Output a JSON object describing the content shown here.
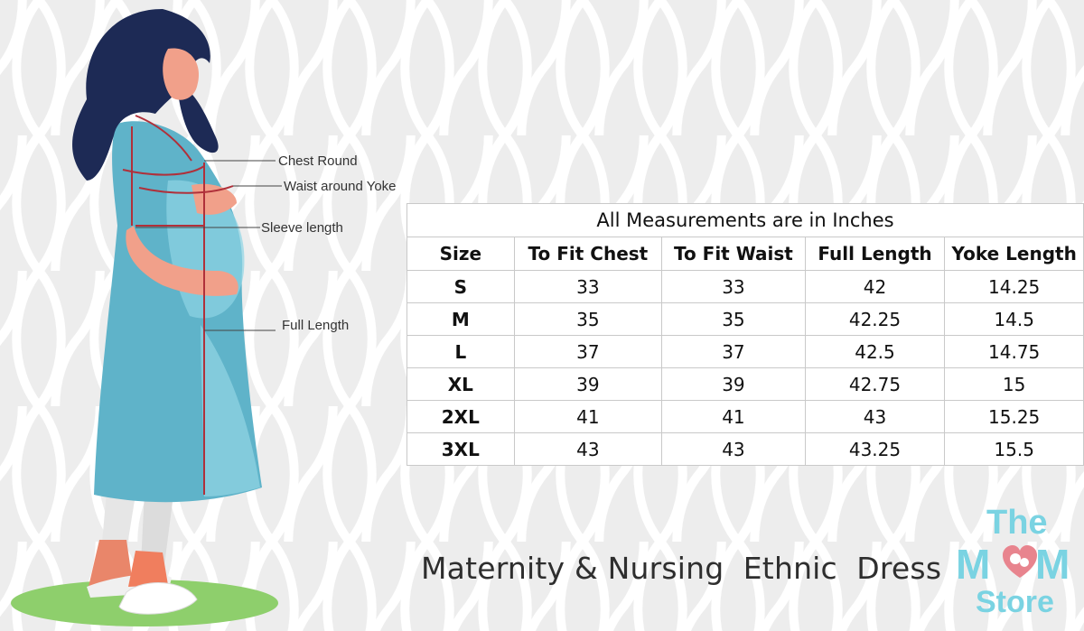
{
  "callouts": {
    "chest": "Chest Round",
    "waist": "Waist around Yoke",
    "sleeve": "Sleeve length",
    "full": "Full Length"
  },
  "size_chart": {
    "caption": "All Measurements are in Inches",
    "headers": [
      "Size",
      "To Fit Chest",
      "To Fit Waist",
      "Full Length",
      "Yoke Length"
    ],
    "rows": [
      [
        "S",
        "33",
        "33",
        "42",
        "14.25"
      ],
      [
        "M",
        "35",
        "35",
        "42.25",
        "14.5"
      ],
      [
        "L",
        "37",
        "37",
        "42.5",
        "14.75"
      ],
      [
        "XL",
        "39",
        "39",
        "42.75",
        "15"
      ],
      [
        "2XL",
        "41",
        "41",
        "43",
        "15.25"
      ],
      [
        "3XL",
        "43",
        "43",
        "43.25",
        "15.5"
      ]
    ]
  },
  "product_title": "Maternity & Nursing  Ethnic  Dress",
  "brand": {
    "line1": "The",
    "mom_left": "M",
    "mom_right": "M",
    "line3": "Store",
    "color": "#7ad3e2",
    "heart_color": "#e8848e"
  },
  "colors": {
    "background": "#f4f4f4",
    "dress": "#5fb3c9",
    "measure_line": "#b0303a"
  }
}
